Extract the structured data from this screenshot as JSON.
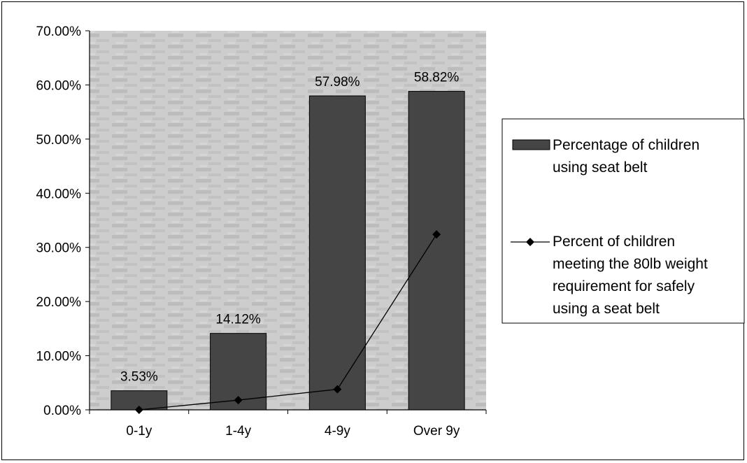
{
  "chart_data": {
    "type": "bar",
    "categories": [
      "0-1y",
      "1-4y",
      "4-9y",
      "Over 9y"
    ],
    "ylim": [
      0,
      70
    ],
    "ytick_values": [
      0,
      10,
      20,
      30,
      40,
      50,
      60,
      70
    ],
    "ytick_labels": [
      "0.00%",
      "10.00%",
      "20.00%",
      "30.00%",
      "40.00%",
      "50.00%",
      "60.00%",
      "70.00%"
    ],
    "series": [
      {
        "name": "Percentage of children using seat belt",
        "kind": "bar",
        "values": [
          3.53,
          14.12,
          57.98,
          58.82
        ],
        "data_labels": [
          "3.53%",
          "14.12%",
          "57.98%",
          "58.82%"
        ],
        "color": "#454545"
      },
      {
        "name": "Percent of children meeting the 80lb weight requirement for safely using a seat belt",
        "kind": "line",
        "values": [
          0.0,
          1.8,
          3.8,
          32.4
        ],
        "marker": "diamond",
        "color": "#000000"
      }
    ],
    "plot_background": "#c8c8c8",
    "legend_position": "right"
  },
  "legend": {
    "bar_lines": [
      "Percentage of children",
      "using seat belt"
    ],
    "line_lines": [
      "Percent of children",
      "meeting the 80lb weight",
      "requirement for safely",
      "using a seat belt"
    ]
  }
}
